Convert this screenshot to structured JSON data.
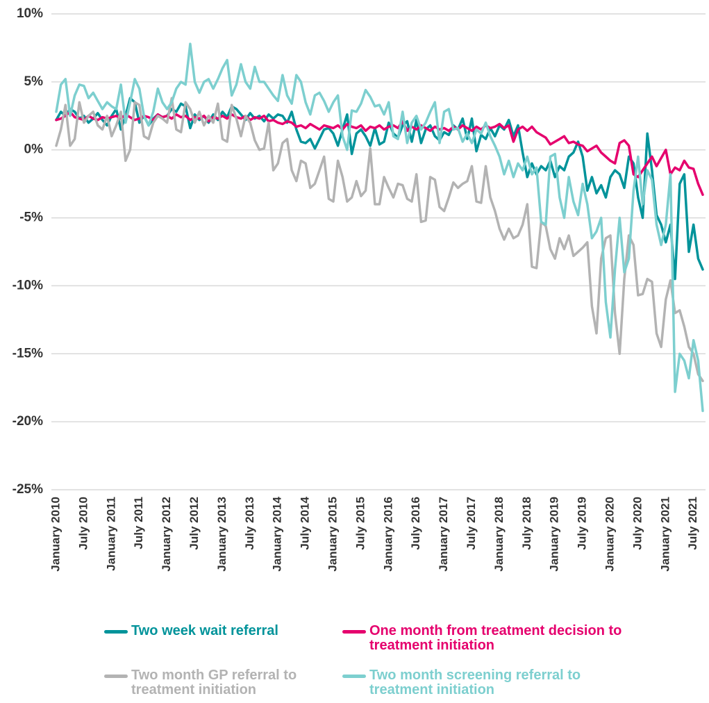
{
  "chart_data": {
    "type": "line",
    "categories": [
      "January 2010",
      null,
      null,
      null,
      null,
      null,
      "July 2010",
      null,
      null,
      null,
      null,
      null,
      "January 2011",
      null,
      null,
      null,
      null,
      null,
      "July 2011",
      null,
      null,
      null,
      null,
      null,
      "January 2012",
      null,
      null,
      null,
      null,
      null,
      "July 2012",
      null,
      null,
      null,
      null,
      null,
      "January 2013",
      null,
      null,
      null,
      null,
      null,
      "July 2013",
      null,
      null,
      null,
      null,
      null,
      "January 2014",
      null,
      null,
      null,
      null,
      null,
      "July 2014",
      null,
      null,
      null,
      null,
      null,
      "January 2015",
      null,
      null,
      null,
      null,
      null,
      "July 2015",
      null,
      null,
      null,
      null,
      null,
      "January 2016",
      null,
      null,
      null,
      null,
      null,
      "July 2016",
      null,
      null,
      null,
      null,
      null,
      "January 2017",
      null,
      null,
      null,
      null,
      null,
      "July 2017",
      null,
      null,
      null,
      null,
      null,
      "January 2018",
      null,
      null,
      null,
      null,
      null,
      "July 2018",
      null,
      null,
      null,
      null,
      null,
      "January 2019",
      null,
      null,
      null,
      null,
      null,
      "July 2019",
      null,
      null,
      null,
      null,
      null,
      "January 2020",
      null,
      null,
      null,
      null,
      null,
      "July 2020",
      null,
      null,
      null,
      null,
      null,
      "January 2021",
      null,
      null,
      null,
      null,
      null,
      "July 2021",
      null,
      null
    ],
    "series": [
      {
        "name": "Two week wait referral",
        "color": "#00939a",
        "values": [
          2.2,
          2.8,
          2.5,
          3.0,
          2.8,
          2.3,
          2.5,
          2.0,
          2.3,
          2.7,
          2.2,
          1.8,
          2.5,
          3.0,
          1.5,
          2.5,
          3.8,
          3.5,
          2.0,
          2.5,
          1.8,
          2.3,
          2.6,
          2.4,
          2.5,
          3.0,
          2.8,
          3.4,
          3.2,
          1.6,
          2.6,
          2.2,
          2.5,
          2.0,
          2.6,
          2.2,
          2.8,
          2.4,
          3.2,
          3.0,
          2.6,
          2.2,
          2.7,
          2.3,
          2.5,
          2.1,
          2.6,
          2.3,
          2.6,
          2.5,
          2.0,
          2.8,
          1.5,
          0.6,
          0.5,
          0.8,
          0.1,
          0.8,
          1.5,
          1.6,
          1.2,
          0.3,
          1.5,
          2.6,
          -0.3,
          1.2,
          1.5,
          1.0,
          0.3,
          1.6,
          0.4,
          0.6,
          2.0,
          1.2,
          0.9,
          1.8,
          2.1,
          0.6,
          2.2,
          0.5,
          1.5,
          1.8,
          1.0,
          0.7,
          1.3,
          1.1,
          1.8,
          1.5,
          2.3,
          0.8,
          2.3,
          -0.1,
          1.1,
          0.8,
          1.6,
          1.0,
          1.8,
          1.5,
          2.2,
          1.0,
          1.8,
          -0.2,
          -2.0,
          -1.0,
          -1.8,
          -1.2,
          -1.5,
          -0.8,
          -2.0,
          -1.2,
          -1.5,
          -0.5,
          -0.2,
          0.6,
          -0.5,
          -3.0,
          -2.0,
          -3.2,
          -2.6,
          -3.5,
          -2.0,
          -1.5,
          -1.8,
          -2.8,
          -0.5,
          -1.0,
          -3.5,
          -5.0,
          1.2,
          -1.5,
          -4.8,
          -5.5,
          -6.8,
          -5.5,
          -9.5,
          -2.5,
          -1.8,
          -7.5,
          -5.5,
          -8.0,
          -8.8
        ]
      },
      {
        "name": "One month from treatment decision to treatment initiation",
        "color": "#e5006d",
        "values": [
          2.2,
          2.3,
          2.5,
          2.8,
          2.4,
          2.3,
          2.2,
          2.5,
          2.3,
          2.2,
          2.4,
          2.3,
          2.4,
          2.5,
          2.3,
          2.6,
          2.4,
          2.2,
          2.3,
          2.5,
          2.4,
          2.2,
          2.6,
          2.4,
          2.5,
          2.3,
          2.6,
          2.4,
          2.5,
          2.2,
          2.4,
          2.3,
          2.5,
          2.1,
          2.4,
          2.3,
          2.5,
          2.3,
          2.6,
          2.4,
          2.3,
          2.5,
          2.2,
          2.4,
          2.3,
          2.5,
          2.1,
          2.2,
          2.0,
          1.9,
          2.1,
          2.0,
          1.7,
          1.8,
          1.6,
          1.9,
          1.7,
          1.5,
          1.8,
          1.7,
          1.6,
          1.8,
          1.5,
          1.9,
          1.7,
          1.6,
          1.8,
          1.4,
          1.7,
          1.6,
          1.8,
          1.5,
          1.7,
          1.8,
          1.6,
          2.1,
          1.4,
          1.7,
          1.5,
          1.8,
          1.6,
          1.4,
          1.7,
          1.5,
          1.6,
          1.4,
          1.7,
          1.5,
          1.8,
          1.6,
          1.4,
          1.7,
          1.5,
          1.8,
          1.6,
          1.7,
          1.9,
          1.6,
          1.8,
          0.6,
          1.5,
          1.7,
          1.4,
          1.7,
          1.3,
          1.1,
          0.9,
          0.4,
          0.6,
          0.8,
          1.0,
          0.5,
          0.6,
          0.4,
          0.3,
          -0.1,
          0.1,
          0.3,
          -0.2,
          -0.5,
          -0.8,
          -1.0,
          0.5,
          0.7,
          0.3,
          -1.8,
          -2.0,
          -1.5,
          -1.0,
          -0.5,
          -1.2,
          -0.6,
          0.0,
          -1.8,
          -1.3,
          -1.5,
          -0.8,
          -1.3,
          -1.4,
          -2.5,
          -3.3
        ]
      },
      {
        "name": "Two month GP referral to treatment initiation",
        "color": "#b3b3b3",
        "values": [
          0.3,
          1.5,
          3.3,
          0.3,
          0.8,
          3.5,
          2.0,
          2.5,
          2.8,
          1.8,
          1.5,
          2.5,
          1.0,
          1.8,
          2.8,
          -0.8,
          0.0,
          3.5,
          3.3,
          1.0,
          0.8,
          2.0,
          2.5,
          2.3,
          2.0,
          3.8,
          1.5,
          1.3,
          3.5,
          3.0,
          2.0,
          2.8,
          1.8,
          2.5,
          2.0,
          3.4,
          0.8,
          0.6,
          3.3,
          2.3,
          1.0,
          2.5,
          2.0,
          0.7,
          0.0,
          0.1,
          2.0,
          -1.5,
          -1.0,
          0.5,
          0.8,
          -1.5,
          -2.3,
          -0.8,
          -1.0,
          -2.8,
          -2.5,
          -1.5,
          -0.5,
          -3.6,
          -3.8,
          -0.8,
          -2.0,
          -3.8,
          -3.5,
          -2.3,
          -3.4,
          -3.0,
          0.1,
          -4.0,
          -4.0,
          -2.0,
          -2.8,
          -3.5,
          -2.5,
          -2.6,
          -3.6,
          -3.8,
          -1.8,
          -5.3,
          -5.2,
          -2.0,
          -2.2,
          -4.2,
          -4.5,
          -3.5,
          -2.4,
          -2.8,
          -2.5,
          -2.3,
          -1.2,
          -3.8,
          -3.9,
          -1.2,
          -3.5,
          -4.5,
          -5.8,
          -6.6,
          -5.8,
          -6.5,
          -6.3,
          -5.5,
          -4.0,
          -8.6,
          -8.7,
          -5.3,
          -5.6,
          -7.3,
          -8.0,
          -6.5,
          -7.3,
          -6.3,
          -7.8,
          -7.5,
          -7.2,
          -6.8,
          -11.5,
          -13.5,
          -8.0,
          -6.5,
          -6.3,
          -12.0,
          -15.0,
          -9.5,
          -6.3,
          -7.0,
          -10.7,
          -10.6,
          -9.5,
          -9.7,
          -13.5,
          -14.5,
          -11.0,
          -9.6,
          -12.0,
          -11.8,
          -13.0,
          -14.5,
          -15.0,
          -16.5,
          -17.0
        ]
      },
      {
        "name": "Two month screening referral to treatment initiation",
        "color": "#7dcfcf",
        "values": [
          2.8,
          4.8,
          5.2,
          2.5,
          4.0,
          4.8,
          4.7,
          3.8,
          4.2,
          3.6,
          3.0,
          3.5,
          3.2,
          3.0,
          4.8,
          2.0,
          3.5,
          5.2,
          4.5,
          2.5,
          1.8,
          2.8,
          4.5,
          3.5,
          3.0,
          3.5,
          4.5,
          5.0,
          4.8,
          7.8,
          5.0,
          4.2,
          5.0,
          5.2,
          4.5,
          5.2,
          6.0,
          6.6,
          4.0,
          4.8,
          6.3,
          5.0,
          4.5,
          6.1,
          5.0,
          5.0,
          4.5,
          4.0,
          3.6,
          5.5,
          4.0,
          3.4,
          5.5,
          5.0,
          3.5,
          2.6,
          4.0,
          4.2,
          3.6,
          2.8,
          3.5,
          4.0,
          1.0,
          0.0,
          2.9,
          2.8,
          3.4,
          4.4,
          3.9,
          3.2,
          3.3,
          2.6,
          3.5,
          1.0,
          0.8,
          2.8,
          0.5,
          2.0,
          2.5,
          1.5,
          2.0,
          2.8,
          3.5,
          0.5,
          2.8,
          3.0,
          1.5,
          1.6,
          0.6,
          1.2,
          0.5,
          1.5,
          1.2,
          2.0,
          1.0,
          0.3,
          -0.5,
          -1.8,
          -0.8,
          -2.0,
          -1.0,
          -1.5,
          -0.5,
          -1.8,
          -1.3,
          -5.3,
          -5.5,
          -0.5,
          -0.3,
          -3.5,
          -5.0,
          -2.0,
          -3.8,
          -4.8,
          -2.5,
          -4.0,
          -6.5,
          -6.0,
          -5.0,
          -11.2,
          -13.8,
          -8.8,
          -5.0,
          -9.0,
          -8.0,
          -3.0,
          -0.5,
          -4.0,
          -1.5,
          -2.2,
          -5.5,
          -7.0,
          -5.5,
          -1.8,
          -17.8,
          -15.0,
          -15.5,
          -16.8,
          -14.0,
          -15.5,
          -19.2
        ]
      }
    ],
    "ylim": [
      -25,
      10
    ],
    "yticks": [
      {
        "value": -25,
        "label": "-25%"
      },
      {
        "value": -20,
        "label": "-20%"
      },
      {
        "value": -15,
        "label": "-15%"
      },
      {
        "value": -10,
        "label": "-10%"
      },
      {
        "value": -5,
        "label": "-5%"
      },
      {
        "value": 0,
        "label": "0%"
      },
      {
        "value": 5,
        "label": "5%"
      },
      {
        "value": 10,
        "label": "10%"
      }
    ],
    "grid": true
  }
}
